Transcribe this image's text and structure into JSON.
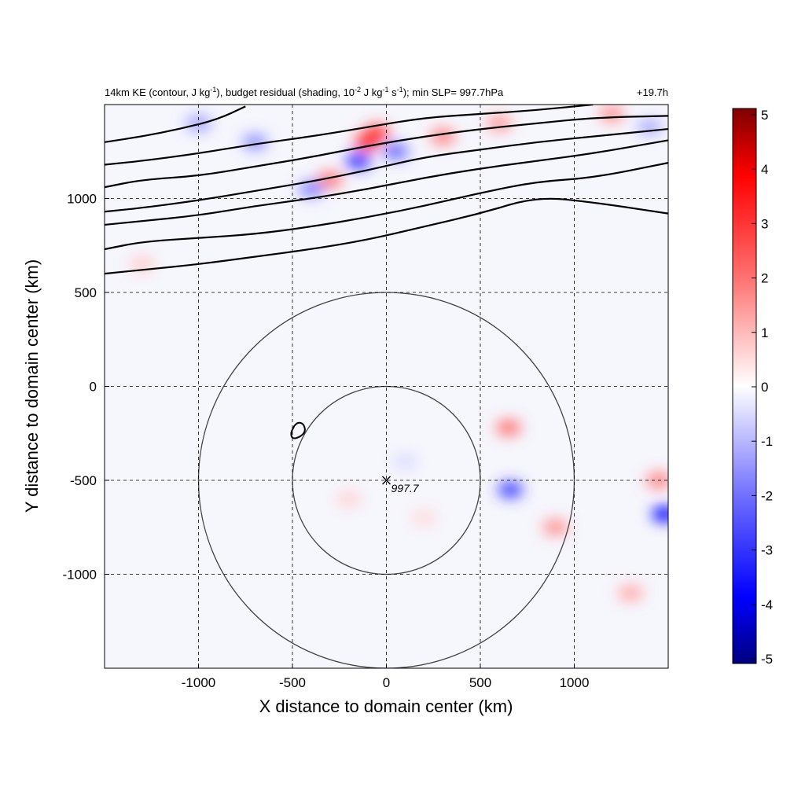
{
  "chart_data": {
    "type": "heatmap",
    "title_left": "14km KE (contour, J kg-1), budget residual (shading, 10-2 J kg-1 s-1); min SLP= 997.7hPa",
    "title_parts": {
      "t1": "14km KE (contour, J kg",
      "s1": "-1",
      "t2": "), budget residual (shading, 10",
      "s2": "-2",
      "t3": " J kg",
      "s3": "-1",
      "t4": " s",
      "s4": "-1",
      "t5": "); min SLP= 997.7hPa"
    },
    "title_right": "+19.7h",
    "xlabel": "X distance to domain center (km)",
    "ylabel": "Y distance to domain center (km)",
    "xlim": [
      -1500,
      1500
    ],
    "ylim": [
      -1500,
      1500
    ],
    "x_ticks": [
      -1000,
      -500,
      0,
      500,
      1000
    ],
    "x_tick_labels": [
      "-1000",
      "-500",
      "0",
      "500",
      "1000"
    ],
    "y_ticks": [
      -1000,
      -500,
      0,
      500,
      1000
    ],
    "y_tick_labels": [
      "-1000",
      "-500",
      "0",
      "500",
      "1000"
    ],
    "grid": true,
    "colorbar": {
      "range": [
        -5,
        5
      ],
      "ticks": [
        "5",
        "4",
        "3",
        "2",
        "1",
        "0",
        "-1",
        "-2",
        "-3",
        "-4",
        "-5"
      ],
      "colormap": "blue-white-red",
      "low_color": "#00007f",
      "mid_color": "#ffffff",
      "high_color": "#7f0000"
    },
    "storm_center": {
      "x": 0,
      "y": -500,
      "label": "997.7"
    },
    "range_rings_km": [
      500,
      1000
    ],
    "ke_contours": [
      {
        "points": [
          [
            -1500,
            600
          ],
          [
            -1300,
            620
          ],
          [
            -1000,
            650
          ],
          [
            -700,
            690
          ],
          [
            -400,
            730
          ],
          [
            -100,
            780
          ],
          [
            200,
            850
          ],
          [
            500,
            920
          ],
          [
            800,
            1010
          ],
          [
            1100,
            980
          ],
          [
            1500,
            920
          ]
        ]
      },
      {
        "points": [
          [
            -1500,
            730
          ],
          [
            -1300,
            770
          ],
          [
            -1000,
            790
          ],
          [
            -700,
            810
          ],
          [
            -400,
            850
          ],
          [
            -100,
            900
          ],
          [
            200,
            960
          ],
          [
            500,
            1030
          ],
          [
            800,
            1090
          ],
          [
            1100,
            1110
          ],
          [
            1500,
            1190
          ]
        ]
      },
      {
        "points": [
          [
            -1500,
            860
          ],
          [
            -1300,
            880
          ],
          [
            -1000,
            910
          ],
          [
            -700,
            960
          ],
          [
            -400,
            1000
          ],
          [
            -100,
            1050
          ],
          [
            200,
            1110
          ],
          [
            500,
            1160
          ],
          [
            800,
            1200
          ],
          [
            1100,
            1240
          ],
          [
            1500,
            1310
          ]
        ]
      },
      {
        "points": [
          [
            -1500,
            930
          ],
          [
            -1300,
            950
          ],
          [
            -1000,
            990
          ],
          [
            -700,
            1040
          ],
          [
            -400,
            1090
          ],
          [
            -100,
            1150
          ],
          [
            200,
            1220
          ],
          [
            500,
            1260
          ],
          [
            800,
            1300
          ],
          [
            1100,
            1330
          ],
          [
            1500,
            1370
          ]
        ]
      },
      {
        "points": [
          [
            -1500,
            1060
          ],
          [
            -1300,
            1100
          ],
          [
            -1000,
            1120
          ],
          [
            -700,
            1170
          ],
          [
            -400,
            1220
          ],
          [
            -100,
            1280
          ],
          [
            200,
            1330
          ],
          [
            500,
            1370
          ],
          [
            800,
            1400
          ],
          [
            1100,
            1430
          ],
          [
            1500,
            1440
          ]
        ]
      },
      {
        "points": [
          [
            -1500,
            1180
          ],
          [
            -1300,
            1200
          ],
          [
            -1000,
            1240
          ],
          [
            -700,
            1290
          ],
          [
            -400,
            1330
          ],
          [
            -100,
            1380
          ],
          [
            200,
            1430
          ],
          [
            500,
            1450
          ],
          [
            800,
            1470
          ],
          [
            1100,
            1500
          ]
        ]
      },
      {
        "points": [
          [
            -1500,
            1300
          ],
          [
            -1300,
            1330
          ],
          [
            -1100,
            1370
          ],
          [
            -900,
            1420
          ],
          [
            -750,
            1490
          ]
        ]
      }
    ],
    "ke_small_contour": {
      "points": [
        [
          -490,
          -210
        ],
        [
          -470,
          -190
        ],
        [
          -440,
          -200
        ],
        [
          -430,
          -240
        ],
        [
          -460,
          -270
        ],
        [
          -500,
          -280
        ],
        [
          -510,
          -250
        ],
        [
          -490,
          -210
        ]
      ]
    },
    "residual_features": [
      {
        "x": -100,
        "y": 1300,
        "v": 3.2
      },
      {
        "x": -150,
        "y": 1200,
        "v": -3.0
      },
      {
        "x": -50,
        "y": 1350,
        "v": 2.8
      },
      {
        "x": 50,
        "y": 1250,
        "v": -2.2
      },
      {
        "x": -300,
        "y": 1100,
        "v": 2.0
      },
      {
        "x": -400,
        "y": 1050,
        "v": -1.8
      },
      {
        "x": 300,
        "y": 1330,
        "v": 1.8
      },
      {
        "x": 600,
        "y": 1400,
        "v": 1.5
      },
      {
        "x": 650,
        "y": -220,
        "v": 2.0
      },
      {
        "x": 660,
        "y": -550,
        "v": -2.8
      },
      {
        "x": 900,
        "y": -750,
        "v": 1.6
      },
      {
        "x": 1480,
        "y": -680,
        "v": -3.5
      },
      {
        "x": 1450,
        "y": -500,
        "v": 1.8
      },
      {
        "x": 1300,
        "y": -1100,
        "v": 1.2
      },
      {
        "x": -1000,
        "y": 1400,
        "v": -1.4
      },
      {
        "x": -700,
        "y": 1300,
        "v": -1.6
      },
      {
        "x": 1200,
        "y": 1450,
        "v": 1.6
      },
      {
        "x": 1400,
        "y": 1380,
        "v": -1.2
      },
      {
        "x": -200,
        "y": -600,
        "v": 0.6
      },
      {
        "x": 200,
        "y": -700,
        "v": 0.5
      },
      {
        "x": -1300,
        "y": 650,
        "v": 0.7
      },
      {
        "x": 100,
        "y": -400,
        "v": -0.5
      }
    ]
  }
}
